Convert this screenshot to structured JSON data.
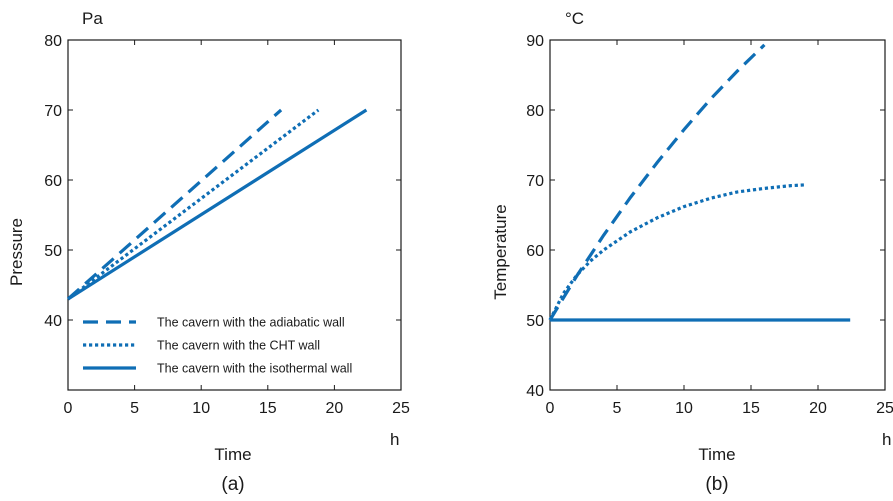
{
  "colors": {
    "series": "#0F6EB5",
    "axis": "#1a1a1a"
  },
  "chart_data": [
    {
      "type": "line",
      "caption": "(a)",
      "xlabel": "Time",
      "x_unit": "h",
      "ylabel": "Pressure",
      "y_unit": "Pa",
      "xlim": [
        0,
        25
      ],
      "ylim": [
        30,
        80
      ],
      "x_ticks": [
        "0",
        "5",
        "10",
        "15",
        "20",
        "25"
      ],
      "y_ticks": [
        "40",
        "50",
        "60",
        "70",
        "80"
      ],
      "grid": false,
      "legend": {
        "position": "bottom-right",
        "entries": [
          "The cavern with the adiabatic wall",
          "The cavern with the CHT wall",
          "The cavern with the isothermal wall"
        ]
      },
      "series": [
        {
          "name": "The cavern with the adiabatic wall",
          "style": "dashed",
          "x": [
            0,
            16
          ],
          "y": [
            43,
            70
          ]
        },
        {
          "name": "The cavern with the CHT wall",
          "style": "dotted",
          "x": [
            0,
            18.8
          ],
          "y": [
            43,
            70
          ]
        },
        {
          "name": "The cavern with the isothermal wall",
          "style": "solid",
          "x": [
            0,
            22.4
          ],
          "y": [
            43,
            70
          ]
        }
      ]
    },
    {
      "type": "line",
      "caption": "(b)",
      "xlabel": "Time",
      "x_unit": "h",
      "ylabel": "Temperature",
      "y_unit": "°C",
      "xlim": [
        0,
        25
      ],
      "ylim": [
        40,
        90
      ],
      "x_ticks": [
        "0",
        "5",
        "10",
        "15",
        "20",
        "25"
      ],
      "y_ticks": [
        "40",
        "50",
        "60",
        "70",
        "80",
        "90"
      ],
      "grid": false,
      "series": [
        {
          "name": "The cavern with the adiabatic wall",
          "style": "dashed",
          "x": [
            0,
            2,
            4,
            6,
            8,
            10,
            12,
            14,
            16
          ],
          "y": [
            50,
            56.3,
            62.1,
            67.5,
            72.5,
            77.2,
            81.6,
            85.6,
            89.3
          ]
        },
        {
          "name": "The cavern with the CHT wall",
          "style": "dotted",
          "x": [
            0,
            1,
            2,
            3,
            4,
            6,
            8,
            10,
            12,
            14,
            16,
            18,
            19
          ],
          "y": [
            50,
            53.8,
            56.4,
            58.4,
            60.0,
            62.6,
            64.6,
            66.2,
            67.4,
            68.3,
            68.8,
            69.2,
            69.3
          ]
        },
        {
          "name": "The cavern with the isothermal wall",
          "style": "solid",
          "x": [
            0,
            22.4
          ],
          "y": [
            50,
            50
          ]
        }
      ]
    }
  ]
}
